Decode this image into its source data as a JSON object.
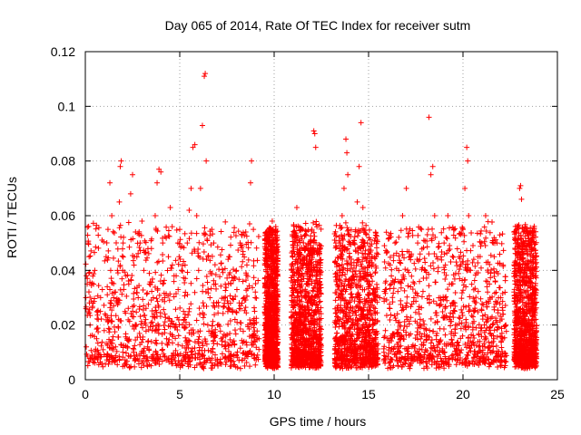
{
  "chart_data": {
    "type": "scatter",
    "title": "Day 065 of 2014, Rate Of TEC Index for receiver sutm",
    "xlabel": "GPS time / hours",
    "ylabel": "ROTI / TECUs",
    "xlim": [
      0,
      25
    ],
    "ylim": [
      0,
      0.12
    ],
    "xticks": [
      0,
      5,
      10,
      15,
      20,
      25
    ],
    "xtick_labels": [
      "0",
      "5",
      "10",
      "15",
      "20",
      "25"
    ],
    "yticks": [
      0,
      0.02,
      0.04,
      0.06,
      0.08,
      0.1,
      0.12
    ],
    "ytick_labels": [
      "0",
      "0.02",
      "0.04",
      "0.06",
      "0.08",
      "0.1",
      "0.12"
    ],
    "grid": true,
    "marker": "+",
    "color": "#ff0000",
    "series": [
      {
        "name": "ROTI",
        "points": [
          [
            0.05,
            0.012
          ],
          [
            0.1,
            0.035
          ],
          [
            0.15,
            0.05
          ],
          [
            0.2,
            0.045
          ],
          [
            0.25,
            0.02
          ],
          [
            0.3,
            0.008
          ],
          [
            0.4,
            0.028
          ],
          [
            0.5,
            0.04
          ],
          [
            0.6,
            0.015
          ],
          [
            0.7,
            0.01
          ],
          [
            0.8,
            0.025
          ],
          [
            0.9,
            0.033
          ],
          [
            1.0,
            0.018
          ],
          [
            1.1,
            0.045
          ],
          [
            1.2,
            0.055
          ],
          [
            1.3,
            0.072
          ],
          [
            1.4,
            0.06
          ],
          [
            1.5,
            0.03
          ],
          [
            1.6,
            0.012
          ],
          [
            1.7,
            0.04
          ],
          [
            1.8,
            0.065
          ],
          [
            1.85,
            0.078
          ],
          [
            1.9,
            0.08
          ],
          [
            2.0,
            0.05
          ],
          [
            2.1,
            0.025
          ],
          [
            2.2,
            0.015
          ],
          [
            2.3,
            0.035
          ],
          [
            2.4,
            0.068
          ],
          [
            2.5,
            0.075
          ],
          [
            2.6,
            0.045
          ],
          [
            2.7,
            0.02
          ],
          [
            2.8,
            0.03
          ],
          [
            2.9,
            0.05
          ],
          [
            3.0,
            0.058
          ],
          [
            3.1,
            0.04
          ],
          [
            3.2,
            0.022
          ],
          [
            3.3,
            0.012
          ],
          [
            3.4,
            0.035
          ],
          [
            3.5,
            0.048
          ],
          [
            3.6,
            0.03
          ],
          [
            3.7,
            0.06
          ],
          [
            3.8,
            0.072
          ],
          [
            3.9,
            0.077
          ],
          [
            4.0,
            0.076
          ],
          [
            4.1,
            0.05
          ],
          [
            4.2,
            0.03
          ],
          [
            4.3,
            0.015
          ],
          [
            4.4,
            0.045
          ],
          [
            4.5,
            0.063
          ],
          [
            4.6,
            0.056
          ],
          [
            4.7,
            0.038
          ],
          [
            4.8,
            0.02
          ],
          [
            4.9,
            0.05
          ],
          [
            5.0,
            0.055
          ],
          [
            5.1,
            0.04
          ],
          [
            5.2,
            0.025
          ],
          [
            5.3,
            0.032
          ],
          [
            5.4,
            0.05
          ],
          [
            5.5,
            0.062
          ],
          [
            5.6,
            0.07
          ],
          [
            5.7,
            0.085
          ],
          [
            5.8,
            0.086
          ],
          [
            5.9,
            0.06
          ],
          [
            6.0,
            0.04
          ],
          [
            6.1,
            0.07
          ],
          [
            6.2,
            0.093
          ],
          [
            6.3,
            0.111
          ],
          [
            6.35,
            0.112
          ],
          [
            6.4,
            0.08
          ],
          [
            6.5,
            0.045
          ],
          [
            6.6,
            0.03
          ],
          [
            6.7,
            0.055
          ],
          [
            6.8,
            0.05
          ],
          [
            6.9,
            0.035
          ],
          [
            7.0,
            0.02
          ],
          [
            7.2,
            0.015
          ],
          [
            7.4,
            0.03
          ],
          [
            7.6,
            0.045
          ],
          [
            7.8,
            0.025
          ],
          [
            8.0,
            0.04
          ],
          [
            8.2,
            0.05
          ],
          [
            8.4,
            0.03
          ],
          [
            8.6,
            0.02
          ],
          [
            8.7,
            0.057
          ],
          [
            8.75,
            0.072
          ],
          [
            8.8,
            0.08
          ],
          [
            8.9,
            0.055
          ],
          [
            9.0,
            0.03
          ],
          [
            9.2,
            0.015
          ],
          [
            9.6,
            0.012
          ],
          [
            9.7,
            0.03
          ],
          [
            9.8,
            0.05
          ],
          [
            9.9,
            0.058
          ],
          [
            10.0,
            0.045
          ],
          [
            10.1,
            0.02
          ],
          [
            11.0,
            0.015
          ],
          [
            11.1,
            0.03
          ],
          [
            11.2,
            0.063
          ],
          [
            11.3,
            0.045
          ],
          [
            11.5,
            0.055
          ],
          [
            11.7,
            0.035
          ],
          [
            11.9,
            0.05
          ],
          [
            12.0,
            0.055
          ],
          [
            12.1,
            0.091
          ],
          [
            12.15,
            0.09
          ],
          [
            12.2,
            0.085
          ],
          [
            12.3,
            0.04
          ],
          [
            12.4,
            0.025
          ],
          [
            13.3,
            0.015
          ],
          [
            13.4,
            0.03
          ],
          [
            13.5,
            0.05
          ],
          [
            13.6,
            0.06
          ],
          [
            13.7,
            0.07
          ],
          [
            13.8,
            0.088
          ],
          [
            13.85,
            0.083
          ],
          [
            13.9,
            0.075
          ],
          [
            14.0,
            0.045
          ],
          [
            14.1,
            0.03
          ],
          [
            14.2,
            0.05
          ],
          [
            14.4,
            0.065
          ],
          [
            14.5,
            0.078
          ],
          [
            14.6,
            0.094
          ],
          [
            14.7,
            0.063
          ],
          [
            14.8,
            0.05
          ],
          [
            15.0,
            0.035
          ],
          [
            15.2,
            0.02
          ],
          [
            15.4,
            0.045
          ],
          [
            15.6,
            0.03
          ],
          [
            16.0,
            0.015
          ],
          [
            16.2,
            0.035
          ],
          [
            16.4,
            0.05
          ],
          [
            16.6,
            0.04
          ],
          [
            16.8,
            0.06
          ],
          [
            17.0,
            0.07
          ],
          [
            17.2,
            0.045
          ],
          [
            17.4,
            0.03
          ],
          [
            17.6,
            0.05
          ],
          [
            17.8,
            0.055
          ],
          [
            18.0,
            0.04
          ],
          [
            18.2,
            0.096
          ],
          [
            18.3,
            0.075
          ],
          [
            18.4,
            0.078
          ],
          [
            18.5,
            0.06
          ],
          [
            18.6,
            0.045
          ],
          [
            18.8,
            0.03
          ],
          [
            19.0,
            0.05
          ],
          [
            19.2,
            0.06
          ],
          [
            19.4,
            0.035
          ],
          [
            19.6,
            0.02
          ],
          [
            19.8,
            0.045
          ],
          [
            20.0,
            0.055
          ],
          [
            20.1,
            0.07
          ],
          [
            20.2,
            0.085
          ],
          [
            20.25,
            0.08
          ],
          [
            20.3,
            0.06
          ],
          [
            20.4,
            0.04
          ],
          [
            20.6,
            0.025
          ],
          [
            20.8,
            0.045
          ],
          [
            21.0,
            0.05
          ],
          [
            21.2,
            0.06
          ],
          [
            21.4,
            0.035
          ],
          [
            21.6,
            0.05
          ],
          [
            21.8,
            0.05
          ],
          [
            22.0,
            0.03
          ],
          [
            22.1,
            0.015
          ],
          [
            22.8,
            0.02
          ],
          [
            22.9,
            0.045
          ],
          [
            23.0,
            0.07
          ],
          [
            23.05,
            0.071
          ],
          [
            23.1,
            0.066
          ],
          [
            23.2,
            0.05
          ],
          [
            23.3,
            0.04
          ],
          [
            23.5,
            0.03
          ],
          [
            23.6,
            0.05
          ],
          [
            23.7,
            0.02
          ],
          [
            23.8,
            0.008
          ]
        ]
      }
    ],
    "bands": [
      [
        0.0,
        9.2
      ],
      [
        9.5,
        10.2
      ],
      [
        10.9,
        12.5
      ],
      [
        13.2,
        15.5
      ],
      [
        15.8,
        22.3
      ],
      [
        22.7,
        23.9
      ]
    ],
    "generated_points": 6000
  }
}
